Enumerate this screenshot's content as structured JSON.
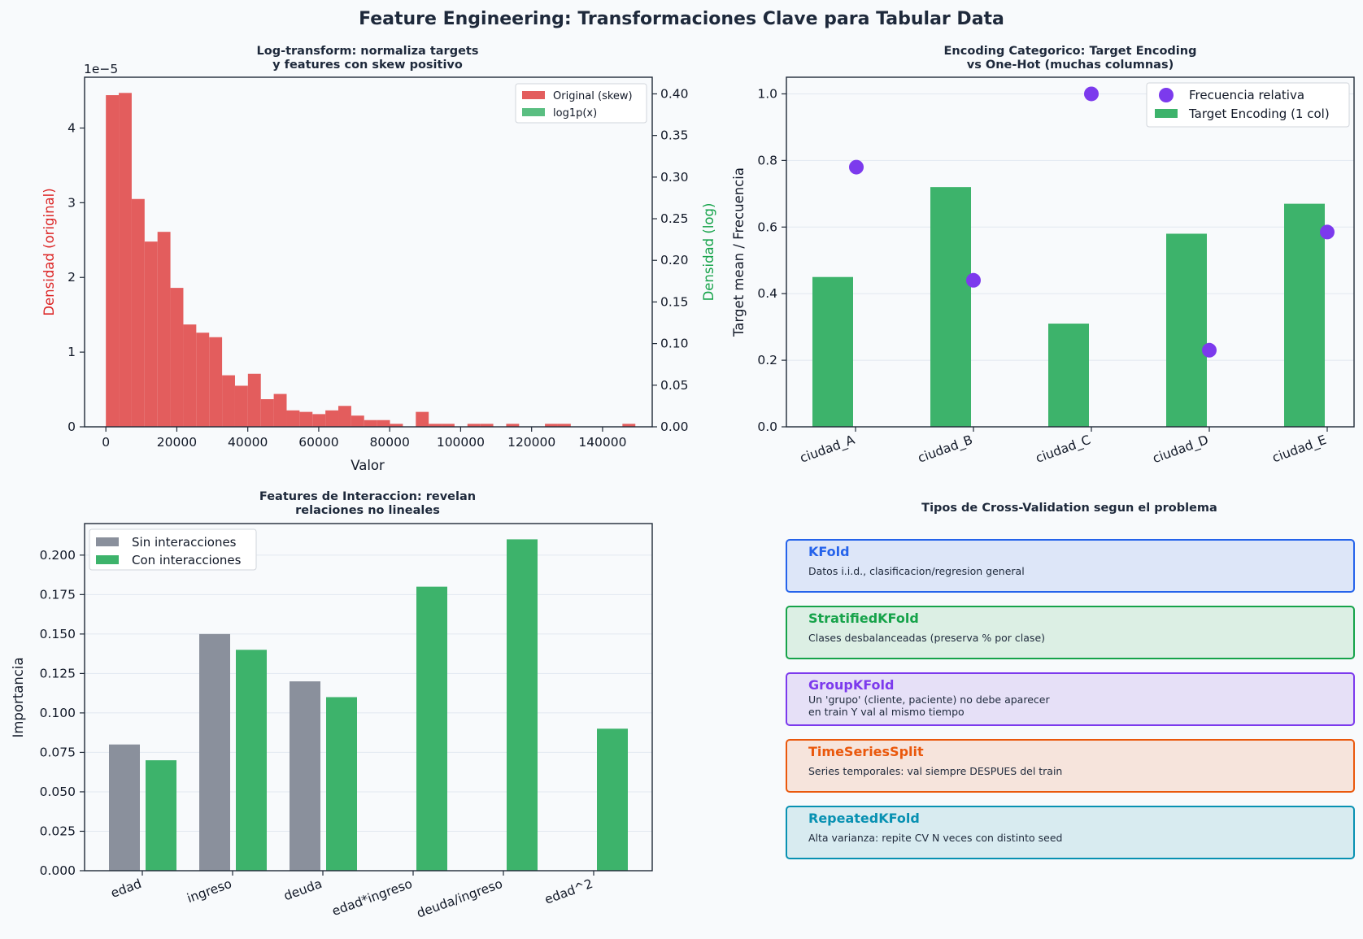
{
  "suptitle": "Feature Engineering: Transformaciones Clave para Tabular Data",
  "colors": {
    "red": "#e35d5d",
    "green": "#3db36b",
    "gray": "#8a909c",
    "purple": "#7c3aed",
    "left_axis_label": "#dc2626",
    "right_axis_label": "#16a34a"
  },
  "chart_data": [
    {
      "type": "bar",
      "title_lines": [
        "Log-transform: normaliza targets",
        "y features con skew positivo"
      ],
      "xlabel": "Valor",
      "ylabel": "Densidad (original)",
      "y2label": "Densidad (log)",
      "offset_text": "1e−5",
      "xlim": [
        -6000,
        154000
      ],
      "ylim": [
        0,
        4.68
      ],
      "y2lim": [
        0,
        0.42
      ],
      "x_ticks": [
        0,
        20000,
        40000,
        60000,
        80000,
        100000,
        120000,
        140000
      ],
      "y_ticks": [
        0,
        1,
        2,
        3,
        4
      ],
      "y2_ticks": [
        "0.00",
        "0.05",
        "0.10",
        "0.15",
        "0.20",
        "0.25",
        "0.30",
        "0.35",
        "0.40"
      ],
      "legend": [
        "Original (skew)",
        "log1p(x)"
      ],
      "legend_position": "upper-right",
      "grid": false,
      "bin_start": 0,
      "bin_width": 3640,
      "series": [
        {
          "name": "Original (skew)",
          "values": [
            4.44,
            4.47,
            3.05,
            2.48,
            2.61,
            1.86,
            1.37,
            1.26,
            1.2,
            0.69,
            0.55,
            0.71,
            0.37,
            0.44,
            0.22,
            0.2,
            0.17,
            0.22,
            0.28,
            0.15,
            0.09,
            0.09,
            0.04,
            0,
            0.2,
            0.04,
            0.04,
            0,
            0.04,
            0.04,
            0,
            0.04,
            0,
            0,
            0.04,
            0.04,
            0,
            0,
            0,
            0,
            0.04
          ]
        },
        {
          "name": "log1p(x)",
          "values": []
        }
      ]
    },
    {
      "type": "bar",
      "title_lines": [
        "Encoding Categorico: Target Encoding",
        "vs One-Hot (muchas columnas)"
      ],
      "xlabel": "",
      "ylabel": "Target mean / Frecuencia",
      "ylim": [
        0,
        1.05
      ],
      "y_ticks": [
        "0.0",
        "0.2",
        "0.4",
        "0.6",
        "0.8",
        "1.0"
      ],
      "categories": [
        "ciudad_A",
        "ciudad_B",
        "ciudad_C",
        "ciudad_D",
        "ciudad_E"
      ],
      "legend": [
        "Frecuencia relativa",
        "Target Encoding (1 col)"
      ],
      "legend_position": "upper-right",
      "grid": true,
      "series": [
        {
          "name": "Target Encoding (1 col)",
          "values": [
            0.45,
            0.72,
            0.31,
            0.58,
            0.67
          ]
        },
        {
          "name": "Frecuencia relativa",
          "values": [
            0.78,
            0.44,
            1.0,
            0.23,
            0.585
          ]
        }
      ]
    },
    {
      "type": "bar",
      "title_lines": [
        "Features de Interaccion: revelan",
        "relaciones no lineales"
      ],
      "xlabel": "",
      "ylabel": "Importancia",
      "ylim": [
        0,
        0.22
      ],
      "y_ticks": [
        "0.000",
        "0.025",
        "0.050",
        "0.075",
        "0.100",
        "0.125",
        "0.150",
        "0.175",
        "0.200"
      ],
      "categories": [
        "edad",
        "ingreso",
        "deuda",
        "edad*ingreso",
        "deuda/ingreso",
        "edad^2"
      ],
      "legend": [
        "Sin interacciones",
        "Con interacciones"
      ],
      "legend_position": "upper-left",
      "grid": true,
      "series": [
        {
          "name": "Sin interacciones",
          "values": [
            0.08,
            0.15,
            0.12,
            0,
            0,
            0
          ]
        },
        {
          "name": "Con interacciones",
          "values": [
            0.07,
            0.14,
            0.11,
            0.18,
            0.21,
            0.09
          ]
        }
      ]
    }
  ],
  "cv_panel": {
    "title": "Tipos de Cross-Validation segun el problema",
    "items": [
      {
        "name": "KFold",
        "desc": [
          "Datos i.i.d., clasificacion/regresion general"
        ],
        "border": "#2563eb",
        "fill": "#dde6f8",
        "title_color": "#2563eb"
      },
      {
        "name": "StratifiedKFold",
        "desc": [
          "Clases desbalanceadas (preserva % por clase)"
        ],
        "border": "#16a34a",
        "fill": "#dcefe4",
        "title_color": "#16a34a"
      },
      {
        "name": "GroupKFold",
        "desc": [
          "Un 'grupo' (cliente, paciente) no debe aparecer",
          "en train Y val al mismo tiempo"
        ],
        "border": "#7c3aed",
        "fill": "#e6e0f7",
        "title_color": "#7c3aed"
      },
      {
        "name": "TimeSeriesSplit",
        "desc": [
          "Series temporales: val siempre DESPUES del train"
        ],
        "border": "#ea580c",
        "fill": "#f6e4dc",
        "title_color": "#ea580c"
      },
      {
        "name": "RepeatedKFold",
        "desc": [
          "Alta varianza: repite CV N veces con distinto seed"
        ],
        "border": "#0891b2",
        "fill": "#d8ebf0",
        "title_color": "#0891b2"
      }
    ]
  }
}
